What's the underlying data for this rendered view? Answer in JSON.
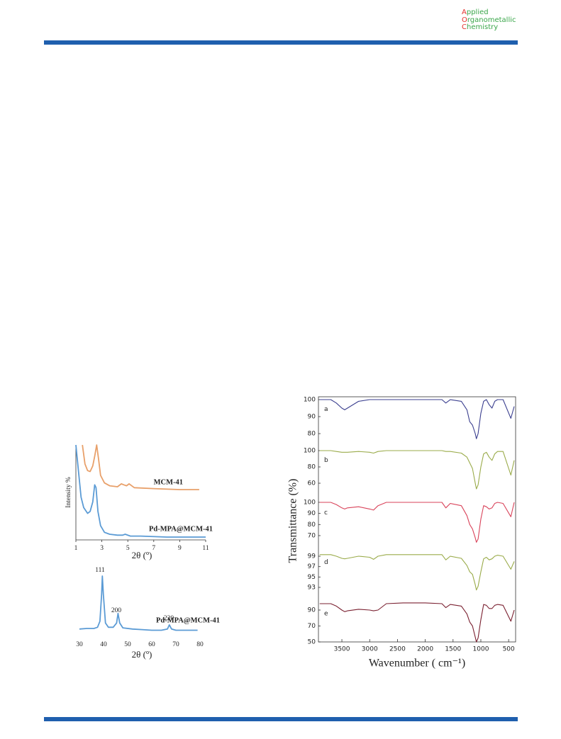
{
  "header": {
    "journal": [
      "Applied",
      "Organometallic",
      "Chemistry"
    ]
  },
  "chart_data": [
    {
      "type": "line",
      "ylabel": "Intensity %",
      "xlabel": "2θ (º)",
      "xlim": [
        1,
        11
      ],
      "xticks": [
        1,
        3,
        5,
        7,
        9,
        11
      ],
      "ylim": [
        0,
        100
      ],
      "series": [
        {
          "name": "MCM-41",
          "color": "#e8a06a",
          "x": [
            1.5,
            1.7,
            1.9,
            2.1,
            2.3,
            2.45,
            2.6,
            2.75,
            2.9,
            3.2,
            3.6,
            4.2,
            4.5,
            4.7,
            4.9,
            5.1,
            5.5,
            7,
            9,
            10.5
          ],
          "values": [
            100,
            80,
            73,
            72,
            78,
            88,
            100,
            85,
            68,
            60,
            57,
            56,
            59,
            58,
            57,
            59,
            55,
            54,
            53,
            53
          ]
        },
        {
          "name": "Pd-MPA@MCM-41",
          "color": "#5b9bd5",
          "x": [
            1,
            1.2,
            1.4,
            1.6,
            1.9,
            2.1,
            2.3,
            2.45,
            2.55,
            2.7,
            2.9,
            3.2,
            3.6,
            4.2,
            4.6,
            4.8,
            5.2,
            6,
            8,
            11
          ],
          "values": [
            100,
            72,
            45,
            34,
            28,
            30,
            40,
            58,
            55,
            30,
            15,
            8,
            6,
            5,
            5,
            6,
            4,
            4,
            3,
            3
          ]
        }
      ]
    },
    {
      "type": "line",
      "xlabel": "2θ (º)",
      "xlim": [
        30,
        80
      ],
      "xticks": [
        30,
        40,
        50,
        60,
        70,
        80
      ],
      "ylim": [
        0,
        100
      ],
      "annotations": [
        "111",
        "200",
        "220"
      ],
      "series": [
        {
          "name": "Pd-MPA@MCM-41",
          "color": "#5b9bd5",
          "x": [
            30,
            33,
            36,
            37.5,
            38.5,
            39.2,
            39.5,
            39.9,
            40.8,
            42,
            44,
            45.4,
            46,
            46.7,
            48,
            52,
            56,
            60,
            64,
            66.5,
            67.3,
            68.2,
            70,
            74,
            79
          ],
          "values": [
            12,
            13,
            13,
            15,
            25,
            70,
            100,
            70,
            22,
            15,
            15,
            22,
            38,
            22,
            14,
            12,
            11,
            10,
            10,
            12,
            19,
            12,
            10,
            10,
            10
          ]
        }
      ]
    },
    {
      "type": "panels",
      "xlabel": "Wavenumber ( cm⁻¹)",
      "ylabel": "Transmittance (%)",
      "xlim": [
        3900,
        400
      ],
      "xticks": [
        3500,
        3000,
        2500,
        2000,
        1500,
        1000,
        500
      ],
      "x": [
        3900,
        3700,
        3600,
        3500,
        3450,
        3400,
        3200,
        3000,
        2930,
        2850,
        2700,
        2400,
        2000,
        1700,
        1630,
        1550,
        1350,
        1250,
        1200,
        1150,
        1100,
        1080,
        1050,
        1000,
        950,
        900,
        850,
        800,
        750,
        700,
        600,
        460,
        400
      ],
      "panels": [
        {
          "label": "a",
          "color": "#3b3f8f",
          "ylim": [
            75,
            101
          ],
          "yticks": [
            80,
            90,
            100
          ],
          "values": [
            100,
            100,
            98,
            95,
            94,
            95,
            99,
            100,
            100,
            100,
            100,
            100,
            100,
            100,
            98,
            100,
            99,
            94,
            87,
            85,
            80,
            77,
            80,
            92,
            99,
            100,
            97,
            95,
            99,
            100,
            100,
            89,
            96
          ]
        },
        {
          "label": "b",
          "color": "#9aab4a",
          "ylim": [
            50,
            102
          ],
          "yticks": [
            60,
            80,
            100
          ],
          "values": [
            100,
            100,
            99,
            98,
            98,
            98,
            99,
            98,
            97,
            99,
            100,
            100,
            100,
            100,
            99,
            99,
            97,
            92,
            85,
            78,
            60,
            53,
            58,
            80,
            96,
            98,
            92,
            88,
            96,
            99,
            99,
            70,
            88
          ]
        },
        {
          "label": "c",
          "color": "#d9435a",
          "ylim": [
            62,
            101
          ],
          "yticks": [
            70,
            80,
            90,
            100
          ],
          "values": [
            100,
            100,
            98,
            95,
            94,
            95,
            96,
            94,
            93,
            97,
            100,
            100,
            100,
            100,
            95,
            99,
            97,
            88,
            80,
            76,
            68,
            64,
            67,
            85,
            97,
            96,
            94,
            95,
            99,
            100,
            99,
            87,
            100
          ]
        },
        {
          "label": "d",
          "color": "#9aab4a",
          "ylim": [
            91.8,
            100
          ],
          "yticks": [
            93,
            95,
            97,
            99
          ],
          "values": [
            99.3,
            99.3,
            99,
            98.6,
            98.5,
            98.6,
            99,
            98.8,
            98.4,
            99,
            99.3,
            99.3,
            99.3,
            99.3,
            98.3,
            99,
            98.6,
            97.2,
            96,
            95.5,
            93.5,
            92.5,
            93.2,
            96,
            98.5,
            98.8,
            98.3,
            98.5,
            99,
            99.2,
            99,
            96.5,
            98
          ]
        },
        {
          "label": "e",
          "color": "#7a2030",
          "ylim": [
            50,
            100
          ],
          "yticks": [
            50,
            70,
            90
          ],
          "values": [
            98,
            98,
            95,
            90,
            88,
            89,
            91,
            90,
            89,
            90,
            98,
            99,
            99,
            98,
            93,
            97,
            95,
            85,
            75,
            70,
            56,
            50,
            55,
            78,
            97,
            96,
            92,
            92,
            96,
            97,
            96,
            76,
            90
          ]
        }
      ]
    }
  ]
}
